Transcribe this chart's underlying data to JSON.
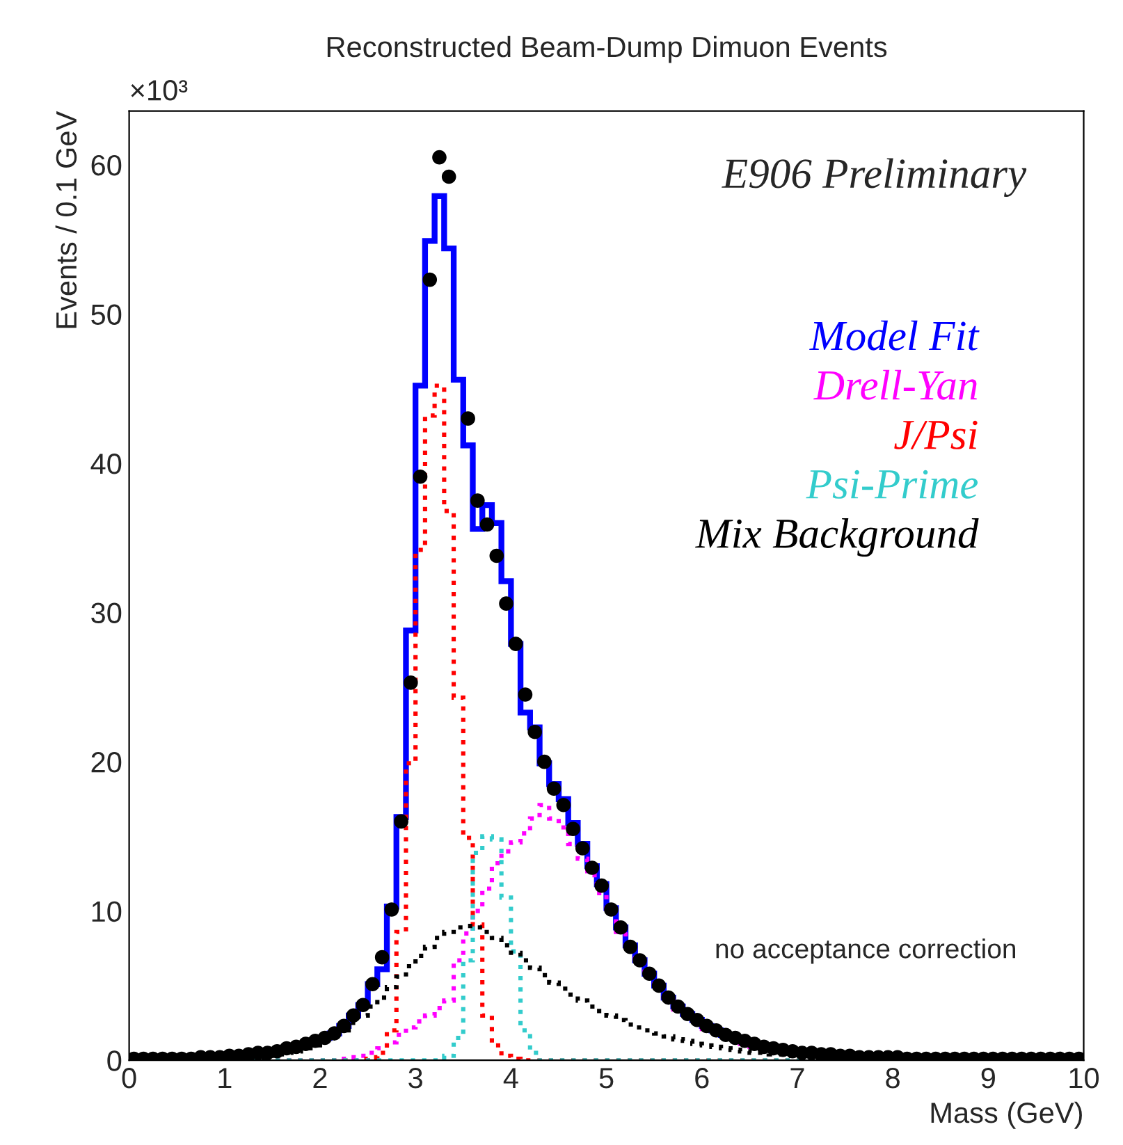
{
  "chart_data": {
    "type": "histogram",
    "title": "Reconstructed Beam-Dump Dimuon Events",
    "xlabel": "Mass (GeV)",
    "ylabel": "Events / 0.1 GeV",
    "bins": [
      0,
      0.1,
      0.2,
      0.3,
      0.4,
      0.5,
      0.6,
      0.7,
      0.8,
      0.9,
      1,
      1.1,
      1.2,
      1.3,
      1.4,
      1.5,
      1.6,
      1.7,
      1.8,
      1.9,
      2,
      2.1,
      2.2,
      2.3,
      2.4,
      2.5,
      2.6,
      2.7,
      2.8,
      2.9,
      3,
      3.1,
      3.2,
      3.3,
      3.4,
      3.5,
      3.6,
      3.7,
      3.8,
      3.9,
      4,
      4.1,
      4.2,
      4.3,
      4.4,
      4.5,
      4.6,
      4.7,
      4.8,
      4.9,
      5,
      5.1,
      5.2,
      5.3,
      5.4,
      5.5,
      5.6,
      5.7,
      5.8,
      5.9,
      6,
      6.1,
      6.2,
      6.3,
      6.4,
      6.5,
      6.6,
      6.7,
      6.8,
      6.9,
      7,
      7.1,
      7.2,
      7.3,
      7.4,
      7.5,
      7.6,
      7.7,
      7.8,
      7.9,
      8,
      8.1,
      8.2,
      8.3,
      8.4,
      8.5,
      8.6,
      8.7,
      8.8,
      8.9,
      9,
      9.1,
      9.2,
      9.3,
      9.4,
      9.5,
      9.6,
      9.7,
      9.8,
      9.9,
      10
    ],
    "series": [
      {
        "name": "Model Fit",
        "color": "#0000ff",
        "line_style": "solid",
        "values": [
          0.1,
          0.1,
          0.1,
          0.1,
          0.1,
          0.1,
          0.2,
          0.2,
          0.2,
          0.2,
          0.3,
          0.4,
          0.4,
          0.5,
          0.6,
          0.7,
          0.8,
          0.9,
          1.1,
          1.3,
          1.5,
          1.8,
          2.3,
          3.0,
          3.7,
          5.1,
          6.1,
          10.3,
          16.3,
          28.8,
          45.2,
          54.9,
          57.9,
          54.4,
          45.6,
          41.2,
          35.6,
          37.2,
          36.0,
          32.1,
          27.9,
          23.3,
          22.3,
          19.9,
          18.5,
          17.5,
          15.9,
          14.5,
          13.0,
          11.8,
          10.2,
          8.9,
          7.7,
          6.7,
          5.8,
          5.0,
          4.2,
          3.6,
          3.1,
          2.7,
          2.3,
          2.0,
          1.7,
          1.5,
          1.3,
          1.1,
          0.9,
          0.8,
          0.7,
          0.6,
          0.5,
          0.5,
          0.4,
          0.4,
          0.3,
          0.3,
          0.2,
          0.2,
          0.2,
          0.2,
          0.2,
          0.1,
          0.1,
          0.1,
          0.1,
          0.1,
          0.1,
          0.1,
          0.1,
          0.1,
          0.1,
          0.1,
          0.1,
          0.1,
          0.1,
          0.1,
          0.1,
          0.1,
          0.1,
          0.1
        ]
      },
      {
        "name": "Drell-Yan",
        "color": "#ff00ff",
        "line_style": "dotted",
        "values": [
          0,
          0,
          0,
          0,
          0,
          0,
          0,
          0,
          0,
          0,
          0,
          0,
          0,
          0,
          0,
          0,
          0,
          0,
          0,
          0,
          0,
          0,
          0.1,
          0.2,
          0.3,
          0.5,
          0.8,
          1.2,
          1.7,
          2.2,
          2.6,
          3.0,
          3.5,
          4.0,
          6.7,
          8.5,
          10.0,
          11.5,
          13.2,
          14.0,
          14.6,
          15.2,
          16.2,
          17.1,
          16.2,
          15.6,
          14.5,
          13.5,
          12.4,
          11.2,
          9.8,
          8.6,
          7.5,
          6.5,
          5.6,
          4.8,
          4.0,
          3.4,
          2.9,
          2.5,
          2.1,
          1.8,
          1.5,
          1.3,
          1.1,
          0.9,
          0.8,
          0.7,
          0.6,
          0.5,
          0.4,
          0.4,
          0.3,
          0.3,
          0.3,
          0.2,
          0.2,
          0.2,
          0.2,
          0.2,
          0.1,
          0.1,
          0.1,
          0.1,
          0.1,
          0.1,
          0.1,
          0.1,
          0.1,
          0.1,
          0.1,
          0.1,
          0.1,
          0.1,
          0.1,
          0.1,
          0.1,
          0.1,
          0.1,
          0.1
        ]
      },
      {
        "name": "J/Psi",
        "color": "#ff0000",
        "line_style": "dotted",
        "values": [
          0,
          0,
          0,
          0,
          0,
          0,
          0,
          0,
          0,
          0,
          0,
          0,
          0,
          0,
          0,
          0,
          0,
          0,
          0,
          0,
          0,
          0,
          0,
          0,
          0.1,
          0.2,
          0.5,
          2.0,
          8.6,
          19.9,
          34.2,
          43.2,
          45.2,
          36.8,
          24.3,
          14.9,
          9.1,
          3.0,
          1.0,
          0.3,
          0.1,
          0,
          0,
          0,
          0,
          0,
          0,
          0,
          0,
          0,
          0,
          0,
          0,
          0,
          0,
          0,
          0,
          0,
          0,
          0,
          0,
          0,
          0,
          0,
          0,
          0,
          0,
          0,
          0,
          0,
          0,
          0,
          0,
          0,
          0,
          0,
          0,
          0,
          0,
          0,
          0,
          0,
          0,
          0,
          0,
          0,
          0,
          0,
          0,
          0,
          0,
          0,
          0,
          0,
          0,
          0,
          0,
          0,
          0,
          0
        ]
      },
      {
        "name": "Psi-Prime",
        "color": "#33cccc",
        "line_style": "dotted",
        "values": [
          0,
          0,
          0,
          0,
          0,
          0,
          0,
          0,
          0,
          0,
          0,
          0,
          0,
          0,
          0,
          0,
          0,
          0,
          0,
          0,
          0,
          0,
          0,
          0,
          0,
          0,
          0,
          0,
          0,
          0,
          0,
          0,
          0,
          0.3,
          1.5,
          6.7,
          13.9,
          15.0,
          14.8,
          10.9,
          7.3,
          2.0,
          0.5,
          0,
          0,
          0,
          0,
          0,
          0,
          0,
          0,
          0,
          0,
          0,
          0,
          0,
          0,
          0,
          0,
          0,
          0,
          0,
          0,
          0,
          0,
          0,
          0,
          0,
          0,
          0,
          0,
          0,
          0,
          0,
          0,
          0,
          0,
          0,
          0,
          0,
          0,
          0,
          0,
          0,
          0,
          0,
          0,
          0,
          0,
          0,
          0,
          0,
          0,
          0,
          0,
          0,
          0,
          0,
          0,
          0
        ]
      },
      {
        "name": "Mix Background",
        "color": "#000000",
        "line_style": "dotted",
        "values": [
          0,
          0,
          0,
          0,
          0,
          0,
          0,
          0,
          0,
          0,
          0.1,
          0.1,
          0.2,
          0.2,
          0.3,
          0.4,
          0.5,
          0.6,
          0.8,
          1.0,
          1.3,
          1.6,
          2.0,
          2.5,
          3.0,
          3.6,
          4.2,
          4.9,
          5.6,
          6.3,
          7.0,
          7.6,
          8.2,
          8.6,
          8.9,
          9.0,
          8.9,
          8.6,
          8.2,
          7.7,
          7.2,
          6.7,
          6.2,
          5.7,
          5.2,
          4.8,
          4.4,
          4.0,
          3.6,
          3.3,
          3.0,
          2.7,
          2.4,
          2.2,
          2.0,
          1.8,
          1.6,
          1.4,
          1.3,
          1.1,
          1.0,
          0.9,
          0.8,
          0.7,
          0.6,
          0.5,
          0.5,
          0.4,
          0.4,
          0.3,
          0.3,
          0.2,
          0.2,
          0.2,
          0.1,
          0.1,
          0.1,
          0.1,
          0.1,
          0.1,
          0,
          0,
          0,
          0,
          0,
          0,
          0,
          0,
          0,
          0,
          0,
          0,
          0,
          0,
          0,
          0,
          0,
          0,
          0,
          0
        ]
      },
      {
        "type": "scatter",
        "color": "#000000",
        "marker": "circle",
        "x": [
          0.05,
          0.15,
          0.25,
          0.35,
          0.45,
          0.55,
          0.65,
          0.75,
          0.85,
          0.95,
          1.05,
          1.15,
          1.25,
          1.35,
          1.45,
          1.55,
          1.65,
          1.75,
          1.85,
          1.95,
          2.05,
          2.15,
          2.25,
          2.35,
          2.45,
          2.55,
          2.65,
          2.75,
          2.85,
          2.95,
          3.05,
          3.15,
          3.25,
          3.35,
          3.45,
          3.55,
          3.65,
          3.75,
          3.85,
          3.95,
          4.05,
          4.15,
          4.25,
          4.35,
          4.45,
          4.55,
          4.65,
          4.75,
          4.85,
          4.95,
          5.05,
          5.15,
          5.25,
          5.35,
          5.45,
          5.55,
          5.65,
          5.75,
          5.85,
          5.95,
          6.05,
          6.15,
          6.25,
          6.35,
          6.45,
          6.55,
          6.65,
          6.75,
          6.85,
          6.95,
          7.05,
          7.15,
          7.25,
          7.35,
          7.45,
          7.55,
          7.65,
          7.75,
          7.85,
          7.95,
          8.05,
          8.15,
          8.25,
          8.35,
          8.45,
          8.55,
          8.65,
          8.75,
          8.85,
          8.95,
          9.05,
          9.15,
          9.25,
          9.35,
          9.45,
          9.55,
          9.65,
          9.75,
          9.85,
          9.95
        ],
        "values": [
          0.1,
          0.1,
          0.1,
          0.1,
          0.1,
          0.1,
          0.1,
          0.2,
          0.2,
          0.2,
          0.3,
          0.3,
          0.4,
          0.5,
          0.5,
          0.6,
          0.8,
          0.9,
          1.1,
          1.3,
          1.5,
          1.8,
          2.3,
          3.0,
          3.7,
          5.1,
          6.9,
          10.1,
          16.0,
          25.3,
          39.1,
          52.3,
          60.5,
          59.2,
          null,
          43.0,
          37.5,
          35.9,
          33.8,
          30.6,
          27.9,
          24.5,
          22.0,
          20.0,
          18.2,
          17.1,
          15.5,
          14.2,
          12.9,
          11.7,
          10.1,
          8.9,
          7.6,
          6.7,
          5.8,
          5.0,
          4.2,
          3.6,
          3.1,
          2.7,
          2.3,
          2.0,
          1.7,
          1.5,
          1.3,
          1.1,
          0.9,
          0.8,
          0.7,
          0.6,
          0.5,
          0.5,
          0.4,
          0.4,
          0.3,
          0.3,
          0.2,
          0.2,
          0.2,
          0.2,
          0.2,
          0.1,
          0.1,
          0.1,
          0.1,
          0.1,
          0.1,
          0.1,
          0.1,
          0.1,
          0.1,
          0.1,
          0.1,
          0.1,
          0.1,
          0.1,
          0.1,
          0.1,
          0.1,
          0.1
        ]
      }
    ],
    "xlim": [
      0,
      10
    ],
    "xticks": [
      0,
      1,
      2,
      3,
      4,
      5,
      6,
      7,
      8,
      9,
      10
    ],
    "ylim": [
      0,
      63.6
    ],
    "yticks": [
      0,
      10,
      20,
      30,
      40,
      50,
      60
    ],
    "legend": "top right",
    "annotations": [
      "×10³",
      "E906 Preliminary",
      "no acceptance correction"
    ]
  }
}
